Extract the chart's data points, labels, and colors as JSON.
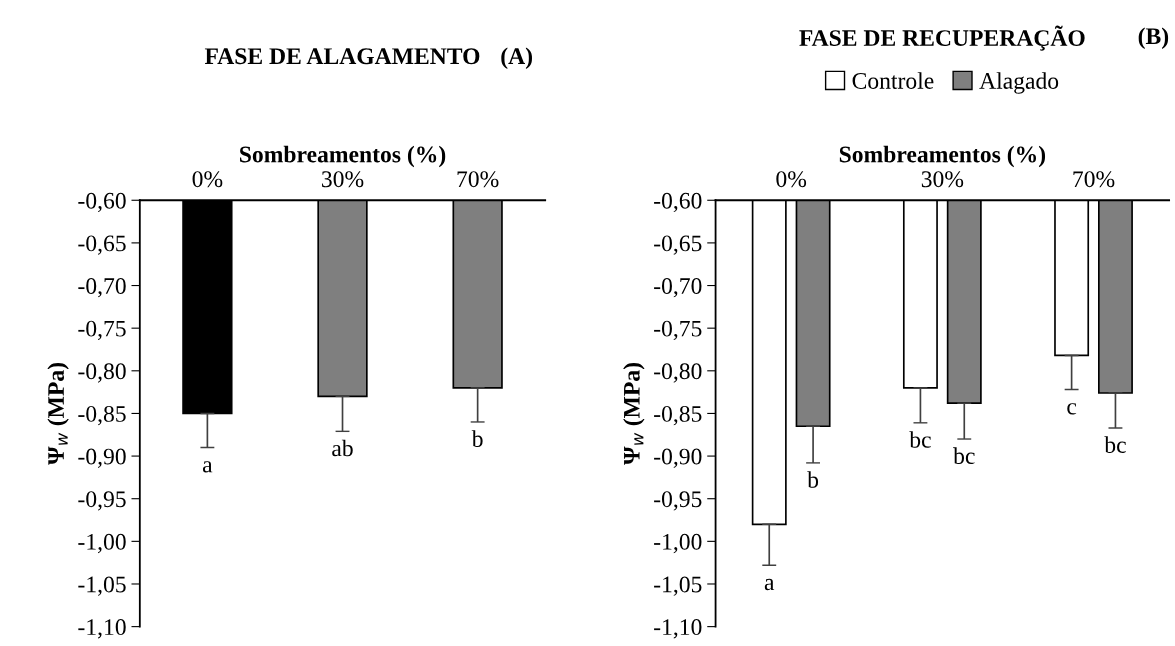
{
  "chart_data": [
    {
      "type": "bar",
      "title": "FASE DE ALAGAMENTO",
      "annotations": [
        "(A)"
      ],
      "xlabel": "Sombreamentos (%)",
      "ylabel": "Ψ$_{w}$ (MPa)",
      "categories": [
        "0%",
        "30%",
        "70%"
      ],
      "series": [
        {
          "values": [
            -0.85,
            -0.83,
            -0.82
          ],
          "colors": [
            "#000000",
            "#7f7f7f",
            "#7f7f7f"
          ],
          "errors": [
            [
              -0.89,
              -0.85
            ],
            [
              -0.871,
              -0.83
            ],
            [
              -0.86,
              -0.82
            ]
          ],
          "value_labels": [
            "a",
            "ab",
            "b"
          ]
        }
      ],
      "ylim": [
        -1.1,
        -0.6
      ],
      "yticks": [
        {
          "value": -0.6,
          "label": "-0,60"
        },
        {
          "value": -0.65,
          "label": "-0,65"
        },
        {
          "value": -0.7,
          "label": "-0,70"
        },
        {
          "value": -0.75,
          "label": "-0,75"
        },
        {
          "value": -0.8,
          "label": "-0,80"
        },
        {
          "value": -0.85,
          "label": "-0,85"
        },
        {
          "value": -0.9,
          "label": "-0,90"
        },
        {
          "value": -0.95,
          "label": "-0,95"
        },
        {
          "value": -1.0,
          "label": "-1,00"
        },
        {
          "value": -1.05,
          "label": "-1,05"
        },
        {
          "value": -1.1,
          "label": "-1,10"
        }
      ],
      "grid": false,
      "legend": false
    },
    {
      "type": "bar",
      "title": "FASE DE RECUPERAÇÃO",
      "annotations": [
        "(B)"
      ],
      "xlabel": "Sombreamentos (%)",
      "ylabel": "Ψ$_{w}$ (MPa)",
      "categories": [
        "0%",
        "30%",
        "70%"
      ],
      "series": [
        {
          "name": "Controle",
          "color": "#ffffff",
          "values": [
            -0.98,
            -0.82,
            -0.782
          ],
          "errors": [
            [
              -1.028,
              -0.98
            ],
            [
              -0.861,
              -0.82
            ],
            [
              -0.822,
              -0.782
            ]
          ],
          "value_labels": [
            "a",
            "bc",
            "c"
          ]
        },
        {
          "name": "Alagado",
          "color": "#7f7f7f",
          "values": [
            -0.865,
            -0.838,
            -0.826
          ],
          "errors": [
            [
              -0.908,
              -0.865
            ],
            [
              -0.88,
              -0.838
            ],
            [
              -0.867,
              -0.826
            ]
          ],
          "value_labels": [
            "b",
            "bc",
            "bc"
          ]
        }
      ],
      "ylim": [
        -1.1,
        -0.6
      ],
      "yticks": [
        {
          "value": -0.6,
          "label": "-0,60"
        },
        {
          "value": -0.65,
          "label": "-0,65"
        },
        {
          "value": -0.7,
          "label": "-0,70"
        },
        {
          "value": -0.75,
          "label": "-0,75"
        },
        {
          "value": -0.8,
          "label": "-0,80"
        },
        {
          "value": -0.85,
          "label": "-0,85"
        },
        {
          "value": -0.9,
          "label": "-0,90"
        },
        {
          "value": -0.95,
          "label": "-0,95"
        },
        {
          "value": -1.0,
          "label": "-1,00"
        },
        {
          "value": -1.05,
          "label": "-1,05"
        },
        {
          "value": -1.1,
          "label": "-1,10"
        }
      ],
      "grid": false,
      "legend": "top"
    }
  ]
}
